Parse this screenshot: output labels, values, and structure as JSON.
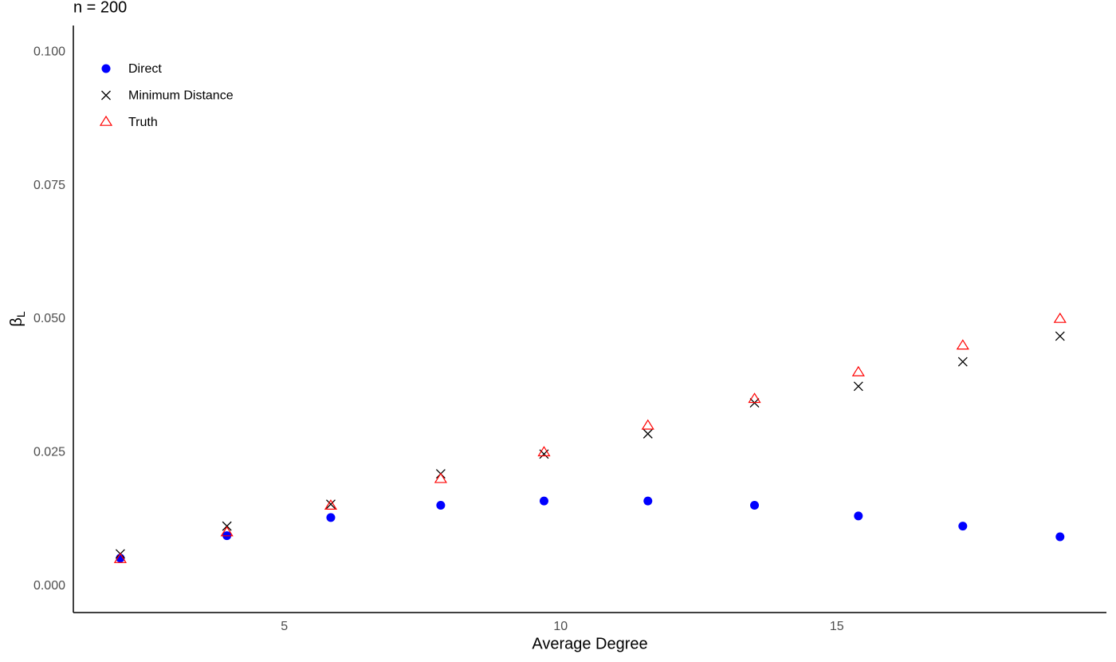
{
  "chart_data": {
    "type": "scatter",
    "title": "n = 200",
    "x_label": "Average Degree",
    "y_label": "β",
    "y_label_subscript": "L",
    "xlim": [
      1.18,
      19.88
    ],
    "xticks": [
      5,
      10,
      15
    ],
    "ylim": [
      -0.005,
      0.105
    ],
    "yticks": [
      {
        "value": 0,
        "label": "0.000"
      },
      0.025,
      {
        "value": 0.05,
        "label": "0.050"
      },
      0.075,
      {
        "value": 0.1,
        "label": "0.100"
      }
    ],
    "grid": false,
    "legend": "top-left",
    "x": [
      2.03,
      3.96,
      5.84,
      7.83,
      9.7,
      11.58,
      13.51,
      15.39,
      17.28,
      19.04
    ],
    "series": [
      {
        "name": "Direct",
        "color": "#0000ff",
        "marker": "circle",
        "values": [
          0.0052,
          0.0094,
          0.0128,
          0.0151,
          0.0159,
          0.0159,
          0.0151,
          0.0131,
          0.0112,
          0.0092
        ]
      },
      {
        "name": "Minimum Distance",
        "color": "#000000",
        "marker": "cross",
        "values": [
          0.006,
          0.0112,
          0.0153,
          0.021,
          0.0247,
          0.0285,
          0.0343,
          0.0374,
          0.042,
          0.0468
        ]
      },
      {
        "name": "Truth",
        "color": "#ff0000",
        "marker": "triangle",
        "values": [
          0.005,
          0.01,
          0.015,
          0.02,
          0.025,
          0.03,
          0.035,
          0.04,
          0.045,
          0.05
        ]
      }
    ]
  }
}
